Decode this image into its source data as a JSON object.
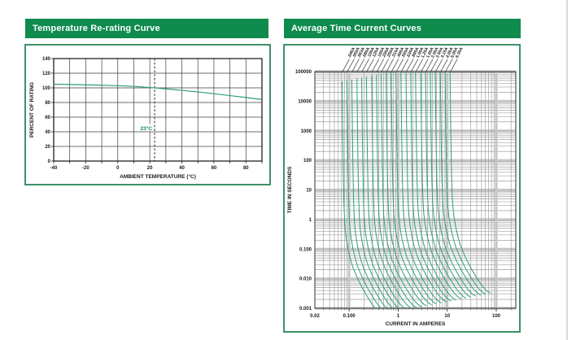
{
  "left_panel": {
    "title": "Temperature Re-rating Curve"
  },
  "right_panel": {
    "title": "Average Time Current Curves"
  },
  "colors": {
    "brand_green": "#0e8b4d",
    "box_border": "#3f9168",
    "curve_teal": "#2d9e7b",
    "grid_dark": "#3c3c3c",
    "grid_minor": "#8e8e8e",
    "grid_major": "#c6c6c6",
    "axis_text": "#1a1a1a",
    "annotation_green": "#0e8b4d",
    "dashed_line": "#222222"
  },
  "chart_data": [
    {
      "type": "line",
      "title": "Temperature Re-rating Curve",
      "xlabel": "AMBIENT TEMPERATURE (°C)",
      "ylabel": "PERCENT OF RATING",
      "xlim": [
        -40,
        90
      ],
      "ylim": [
        0,
        140
      ],
      "xticks": [
        -40,
        -20,
        0,
        20,
        40,
        60,
        80
      ],
      "x_minor_step": 10,
      "yticks": [
        0,
        20,
        40,
        60,
        80,
        100,
        120,
        140
      ],
      "grid": true,
      "legend": "none",
      "annotation": {
        "label": "23°C",
        "x": 23,
        "y": 45
      },
      "series": [
        {
          "name": "percent-of-rating",
          "points": [
            [
              -40,
              105
            ],
            [
              -30,
              104.6
            ],
            [
              -20,
              104.2
            ],
            [
              -10,
              103.6
            ],
            [
              0,
              103
            ],
            [
              10,
              102
            ],
            [
              23,
              100
            ],
            [
              30,
              98.6
            ],
            [
              40,
              96.6
            ],
            [
              50,
              94.4
            ],
            [
              60,
              92
            ],
            [
              70,
              89.4
            ],
            [
              80,
              86.8
            ],
            [
              90,
              84
            ]
          ]
        }
      ]
    },
    {
      "type": "line",
      "x_scale": "log",
      "y_scale": "log",
      "title": "Average Time Current Curves",
      "xlabel": "CURRENT IN AMPERES",
      "ylabel": "TIME IN SECONDS",
      "xlim": [
        0.02,
        250
      ],
      "ylim": [
        0.001,
        100000
      ],
      "xticks": [
        {
          "v": 0.02,
          "label": "0.02"
        },
        {
          "v": 0.1,
          "label": "0.100"
        },
        {
          "v": 1,
          "label": "1"
        },
        {
          "v": 10,
          "label": "10"
        },
        {
          "v": 100,
          "label": "100"
        }
      ],
      "yticks": [
        {
          "v": 100000,
          "label": "100000"
        },
        {
          "v": 10000,
          "label": "10000"
        },
        {
          "v": 1000,
          "label": "1000"
        },
        {
          "v": 100,
          "label": "100"
        },
        {
          "v": 10,
          "label": "10"
        },
        {
          "v": 1,
          "label": "1"
        },
        {
          "v": 0.1,
          "label": "0.100"
        },
        {
          "v": 0.01,
          "label": "0.010"
        },
        {
          "v": 0.001,
          "label": "0.001"
        }
      ],
      "grid": true,
      "legend": "labels-above-plot",
      "ratings_amps": [
        0.04,
        0.05,
        0.063,
        0.08,
        0.1,
        0.125,
        0.16,
        0.2,
        0.25,
        0.315,
        0.4,
        0.5,
        0.63,
        0.8,
        1.0,
        1.25,
        1.6,
        2.0,
        2.5,
        3.15,
        4.0,
        5.0,
        6.3
      ],
      "curve_labels": [
        ".040A",
        ".050A",
        ".063A",
        ".080A",
        ".100A",
        ".125A",
        ".160A",
        ".200A",
        ".250A",
        ".315A",
        ".400A",
        ".500A",
        ".630A",
        ".800A",
        "1.00A",
        "1.25A",
        "1.60A",
        "2.00A",
        "2.50A",
        "3.15A",
        "4.00A",
        "5.00A",
        "6.30A"
      ],
      "curve_profile_time_multiple": [
        [
          100000,
          1.8
        ],
        [
          10000,
          1.83
        ],
        [
          1000,
          1.86
        ],
        [
          100,
          1.9
        ],
        [
          10,
          1.95
        ],
        [
          2,
          2.02
        ],
        [
          1,
          2.08
        ],
        [
          0.5,
          2.18
        ],
        [
          0.2,
          2.4
        ],
        [
          0.1,
          2.65
        ],
        [
          0.05,
          3.0
        ],
        [
          0.02,
          3.8
        ],
        [
          0.01,
          4.7
        ],
        [
          0.005,
          6.0
        ],
        [
          0.003,
          7.3
        ],
        [
          0.002,
          8.8
        ],
        [
          0.0015,
          10.5
        ],
        [
          0.0013,
          12.0
        ]
      ]
    }
  ]
}
